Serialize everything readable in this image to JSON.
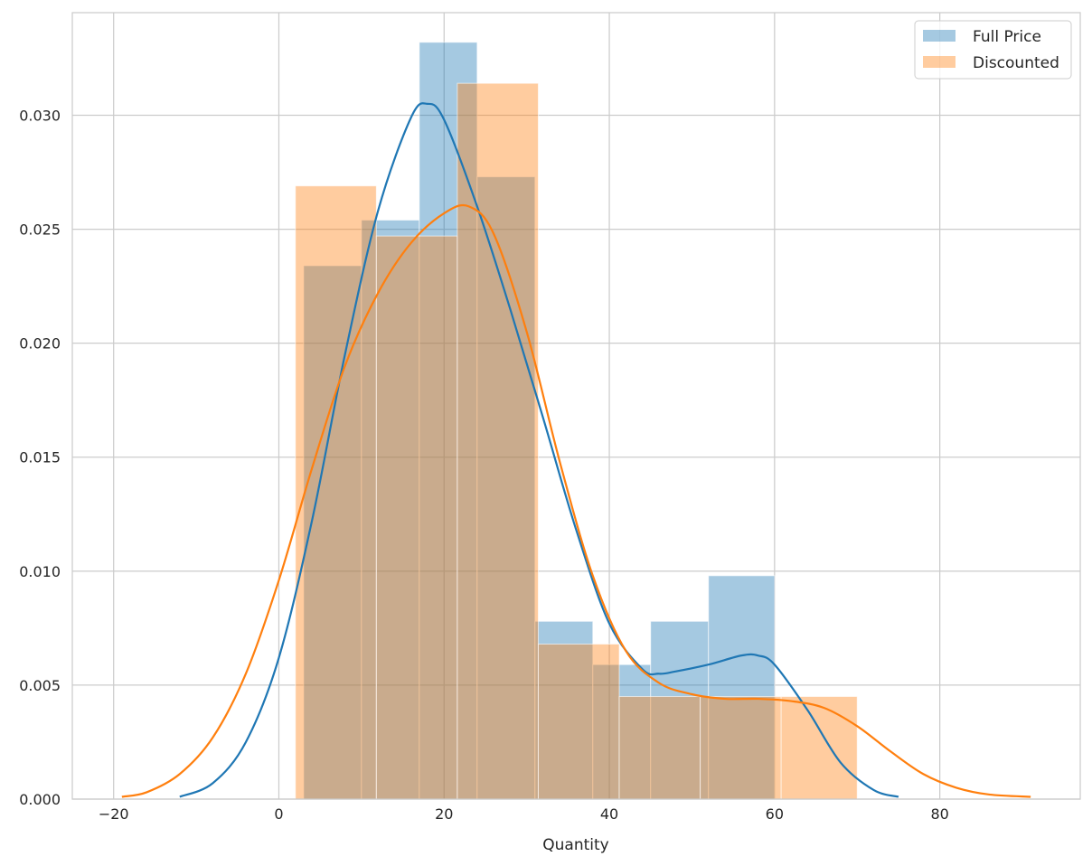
{
  "chart_data": {
    "type": "histogram",
    "title": "",
    "xlabel": "Quantity",
    "ylabel": "",
    "xlim": [
      -25,
      97
    ],
    "ylim": [
      0,
      0.0345
    ],
    "xticks": [
      -20,
      0,
      20,
      40,
      60,
      80
    ],
    "xtick_labels": [
      "−20",
      "0",
      "20",
      "40",
      "60",
      "80"
    ],
    "yticks": [
      0,
      0.005,
      0.01,
      0.015,
      0.02,
      0.025,
      0.03
    ],
    "ytick_labels": [
      "0.000",
      "0.005",
      "0.010",
      "0.015",
      "0.020",
      "0.025",
      "0.030"
    ],
    "grid": true,
    "legend_position": "top-right",
    "series": [
      {
        "name": "Full Price",
        "color": "#1f77b4",
        "bin_edges": [
          3,
          10,
          17,
          24,
          31,
          38,
          45,
          52,
          60
        ],
        "values": [
          0.0234,
          0.0254,
          0.0332,
          0.0273,
          0.0078,
          0.0059,
          0.0078,
          0.0098
        ],
        "kde_x": [
          -12,
          -8,
          -4,
          0,
          4,
          8,
          12,
          16,
          18,
          20,
          24,
          28,
          32,
          36,
          40,
          44,
          46,
          48,
          52,
          56,
          58,
          60,
          64,
          68,
          72,
          75
        ],
        "kde_y": [
          0.0001,
          0.0007,
          0.0025,
          0.0062,
          0.0122,
          0.0195,
          0.0258,
          0.0299,
          0.0305,
          0.0298,
          0.026,
          0.0215,
          0.0167,
          0.0118,
          0.0077,
          0.0057,
          0.0055,
          0.0056,
          0.0059,
          0.0063,
          0.0063,
          0.0059,
          0.0039,
          0.0016,
          0.0004,
          0.0001
        ]
      },
      {
        "name": "Discounted",
        "color": "#ff7f0e",
        "bin_edges": [
          2,
          11.8,
          21.6,
          31.4,
          41.2,
          51,
          60.8,
          70
        ],
        "values": [
          0.0269,
          0.0247,
          0.0314,
          0.0068,
          0.0045,
          0.0045,
          0.0045
        ],
        "kde_x": [
          -19,
          -16,
          -12,
          -8,
          -4,
          0,
          4,
          8,
          12,
          16,
          20,
          23,
          26,
          30,
          34,
          38,
          42,
          46,
          50,
          54,
          58,
          62,
          66,
          70,
          74,
          78,
          82,
          86,
          91
        ],
        "kde_y": [
          0.0001,
          0.0003,
          0.0011,
          0.0027,
          0.0055,
          0.0096,
          0.0145,
          0.019,
          0.0222,
          0.0244,
          0.0257,
          0.026,
          0.0248,
          0.0205,
          0.0148,
          0.0098,
          0.0065,
          0.0051,
          0.0046,
          0.0044,
          0.0044,
          0.0043,
          0.004,
          0.0032,
          0.0021,
          0.0011,
          0.0005,
          0.0002,
          0.0001
        ]
      }
    ]
  }
}
